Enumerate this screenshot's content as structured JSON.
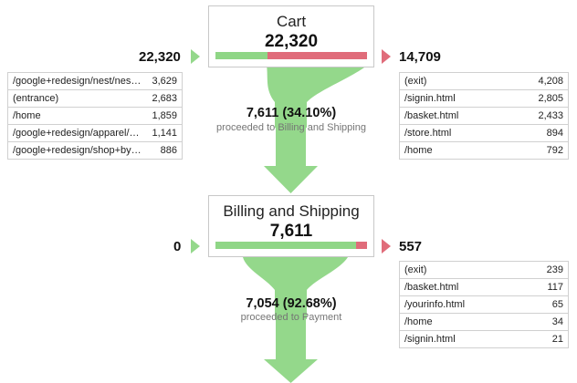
{
  "steps": [
    {
      "name": "Cart",
      "total": "22,320",
      "entries": "22,320",
      "exits": "14,709",
      "proceed_fraction": 0.341,
      "entry_sources": [
        {
          "label": "/google+redesign/nest/nes…",
          "value": "3,629"
        },
        {
          "label": "(entrance)",
          "value": "2,683"
        },
        {
          "label": "/home",
          "value": "1,859"
        },
        {
          "label": "/google+redesign/apparel/…",
          "value": "1,141"
        },
        {
          "label": "/google+redesign/shop+by…",
          "value": "886"
        }
      ],
      "exit_destinations": [
        {
          "label": "(exit)",
          "value": "4,208"
        },
        {
          "label": "/signin.html",
          "value": "2,805"
        },
        {
          "label": "/basket.html",
          "value": "2,433"
        },
        {
          "label": "/store.html",
          "value": "894"
        },
        {
          "label": "/home",
          "value": "792"
        }
      ],
      "proceeded_count": "7,611 (34.10%)",
      "proceeded_label": "proceeded to Billing and Shipping"
    },
    {
      "name": "Billing and Shipping",
      "total": "7,611",
      "entries": "0",
      "exits": "557",
      "proceed_fraction": 0.9268,
      "exit_destinations": [
        {
          "label": "(exit)",
          "value": "239"
        },
        {
          "label": "/basket.html",
          "value": "117"
        },
        {
          "label": "/yourinfo.html",
          "value": "65"
        },
        {
          "label": "/home",
          "value": "34"
        },
        {
          "label": "/signin.html",
          "value": "21"
        }
      ],
      "proceeded_count": "7,054 (92.68%)",
      "proceeded_label": "proceeded to Payment"
    }
  ],
  "colors": {
    "green": "#94d88b",
    "red": "#e06c7a"
  }
}
